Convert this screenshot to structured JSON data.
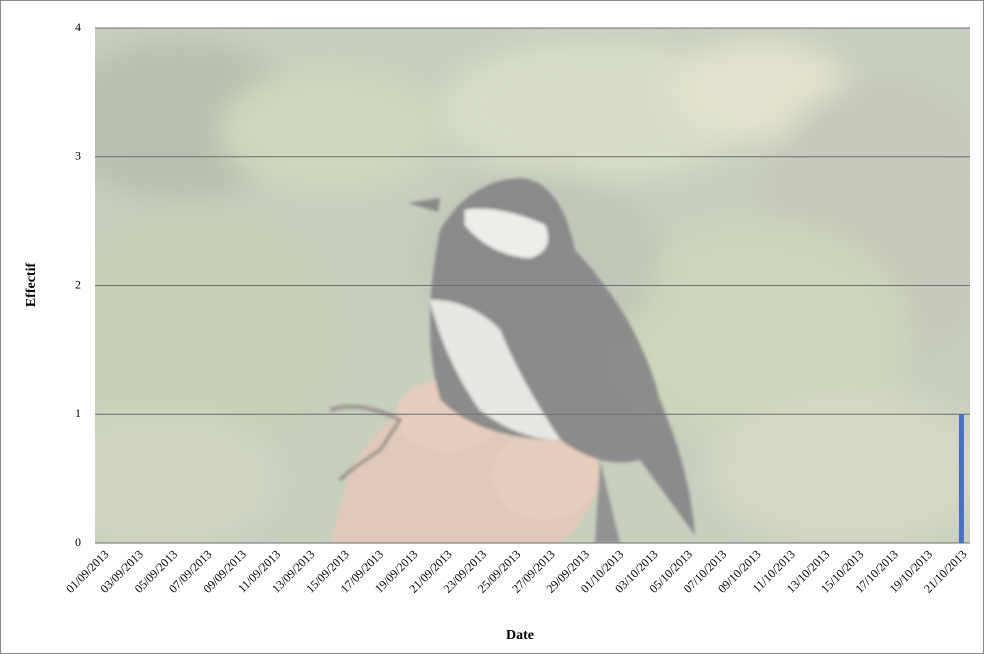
{
  "chart_data": {
    "type": "bar",
    "x_label": "Date",
    "y_label": "Effectif",
    "categories": [
      "01/09/2013",
      null,
      "03/09/2013",
      null,
      "05/09/2013",
      null,
      "07/09/2013",
      null,
      "09/09/2013",
      null,
      "11/09/2013",
      null,
      "13/09/2013",
      null,
      "15/09/2013",
      null,
      "17/09/2013",
      null,
      "19/09/2013",
      null,
      "21/09/2013",
      null,
      "23/09/2013",
      null,
      "25/09/2013",
      null,
      "27/09/2013",
      null,
      "29/09/2013",
      null,
      "01/10/2013",
      null,
      "03/10/2013",
      null,
      "05/10/2013",
      null,
      "07/10/2013",
      null,
      "09/10/2013",
      null,
      "11/10/2013",
      null,
      "13/10/2013",
      null,
      "15/10/2013",
      null,
      "17/10/2013",
      null,
      "19/10/2013",
      null,
      "21/10/2013"
    ],
    "values": [
      0,
      0,
      0,
      0,
      0,
      0,
      0,
      0,
      0,
      0,
      0,
      0,
      0,
      0,
      0,
      0,
      0,
      0,
      0,
      0,
      0,
      0,
      0,
      0,
      0,
      0,
      0,
      0,
      0,
      0,
      0,
      0,
      0,
      0,
      0,
      0,
      0,
      0,
      0,
      0,
      0,
      0,
      0,
      0,
      0,
      0,
      0,
      0,
      0,
      0,
      1
    ],
    "color": "#4472c4",
    "ylim": [
      0,
      4
    ],
    "yticks": [
      0,
      1,
      2,
      3,
      4
    ],
    "grid": true
  }
}
